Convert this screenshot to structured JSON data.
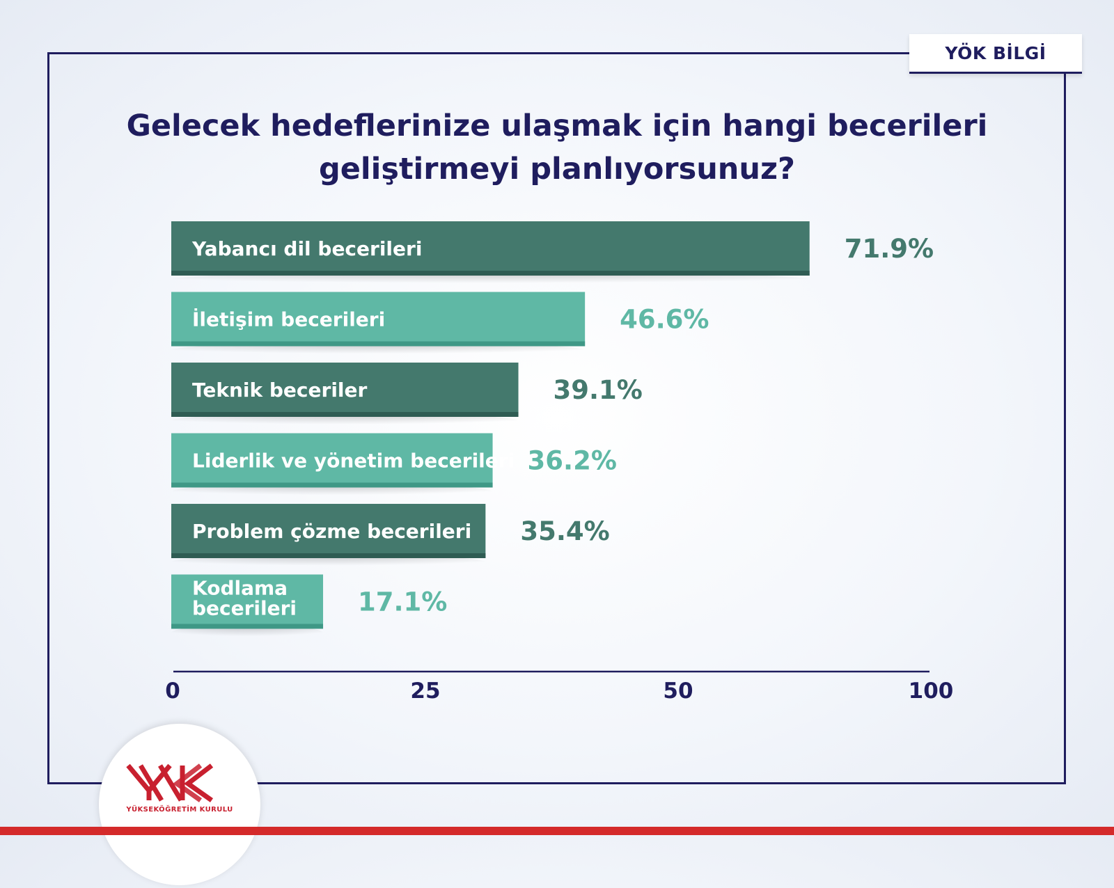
{
  "brand": {
    "tag": "YÖK BİLGİ",
    "logo_name": "YÜKSEKÖĞRETİM KURULU",
    "accent": "#d42a2a"
  },
  "title_lines": [
    "Gelecek hedeflerinize ulaşmak için hangi becerileri",
    "geliştirmeyi planlıyorsunuz?"
  ],
  "colors": {
    "dark": "#44796d",
    "light": "#5fb8a5",
    "navy": "#1f1d5e"
  },
  "chart_data": {
    "type": "bar",
    "orientation": "horizontal",
    "categories": [
      "Yabancı dil becerileri",
      "İletişim becerileri",
      "Teknik beceriler",
      "Liderlik ve yönetim becerileri",
      "Problem çözme becerileri",
      "Kodlama becerileri"
    ],
    "category_lines": [
      [
        "Yabancı dil becerileri"
      ],
      [
        "İletişim becerileri"
      ],
      [
        "Teknik beceriler"
      ],
      [
        "Liderlik ve yönetim becerileri"
      ],
      [
        "Problem çözme becerileri"
      ],
      [
        "Kodlama",
        "becerileri"
      ]
    ],
    "values": [
      71.9,
      46.6,
      39.1,
      36.2,
      35.4,
      17.1
    ],
    "value_labels": [
      "71.9%",
      "46.6%",
      "39.1%",
      "36.2%",
      "35.4%",
      "17.1%"
    ],
    "bar_colors": [
      "#44796d",
      "#5fb8a5",
      "#44796d",
      "#5fb8a5",
      "#44796d",
      "#5fb8a5"
    ],
    "x_ticks": [
      "0",
      "25",
      "50",
      "100"
    ],
    "grid": false,
    "legend": "none"
  }
}
